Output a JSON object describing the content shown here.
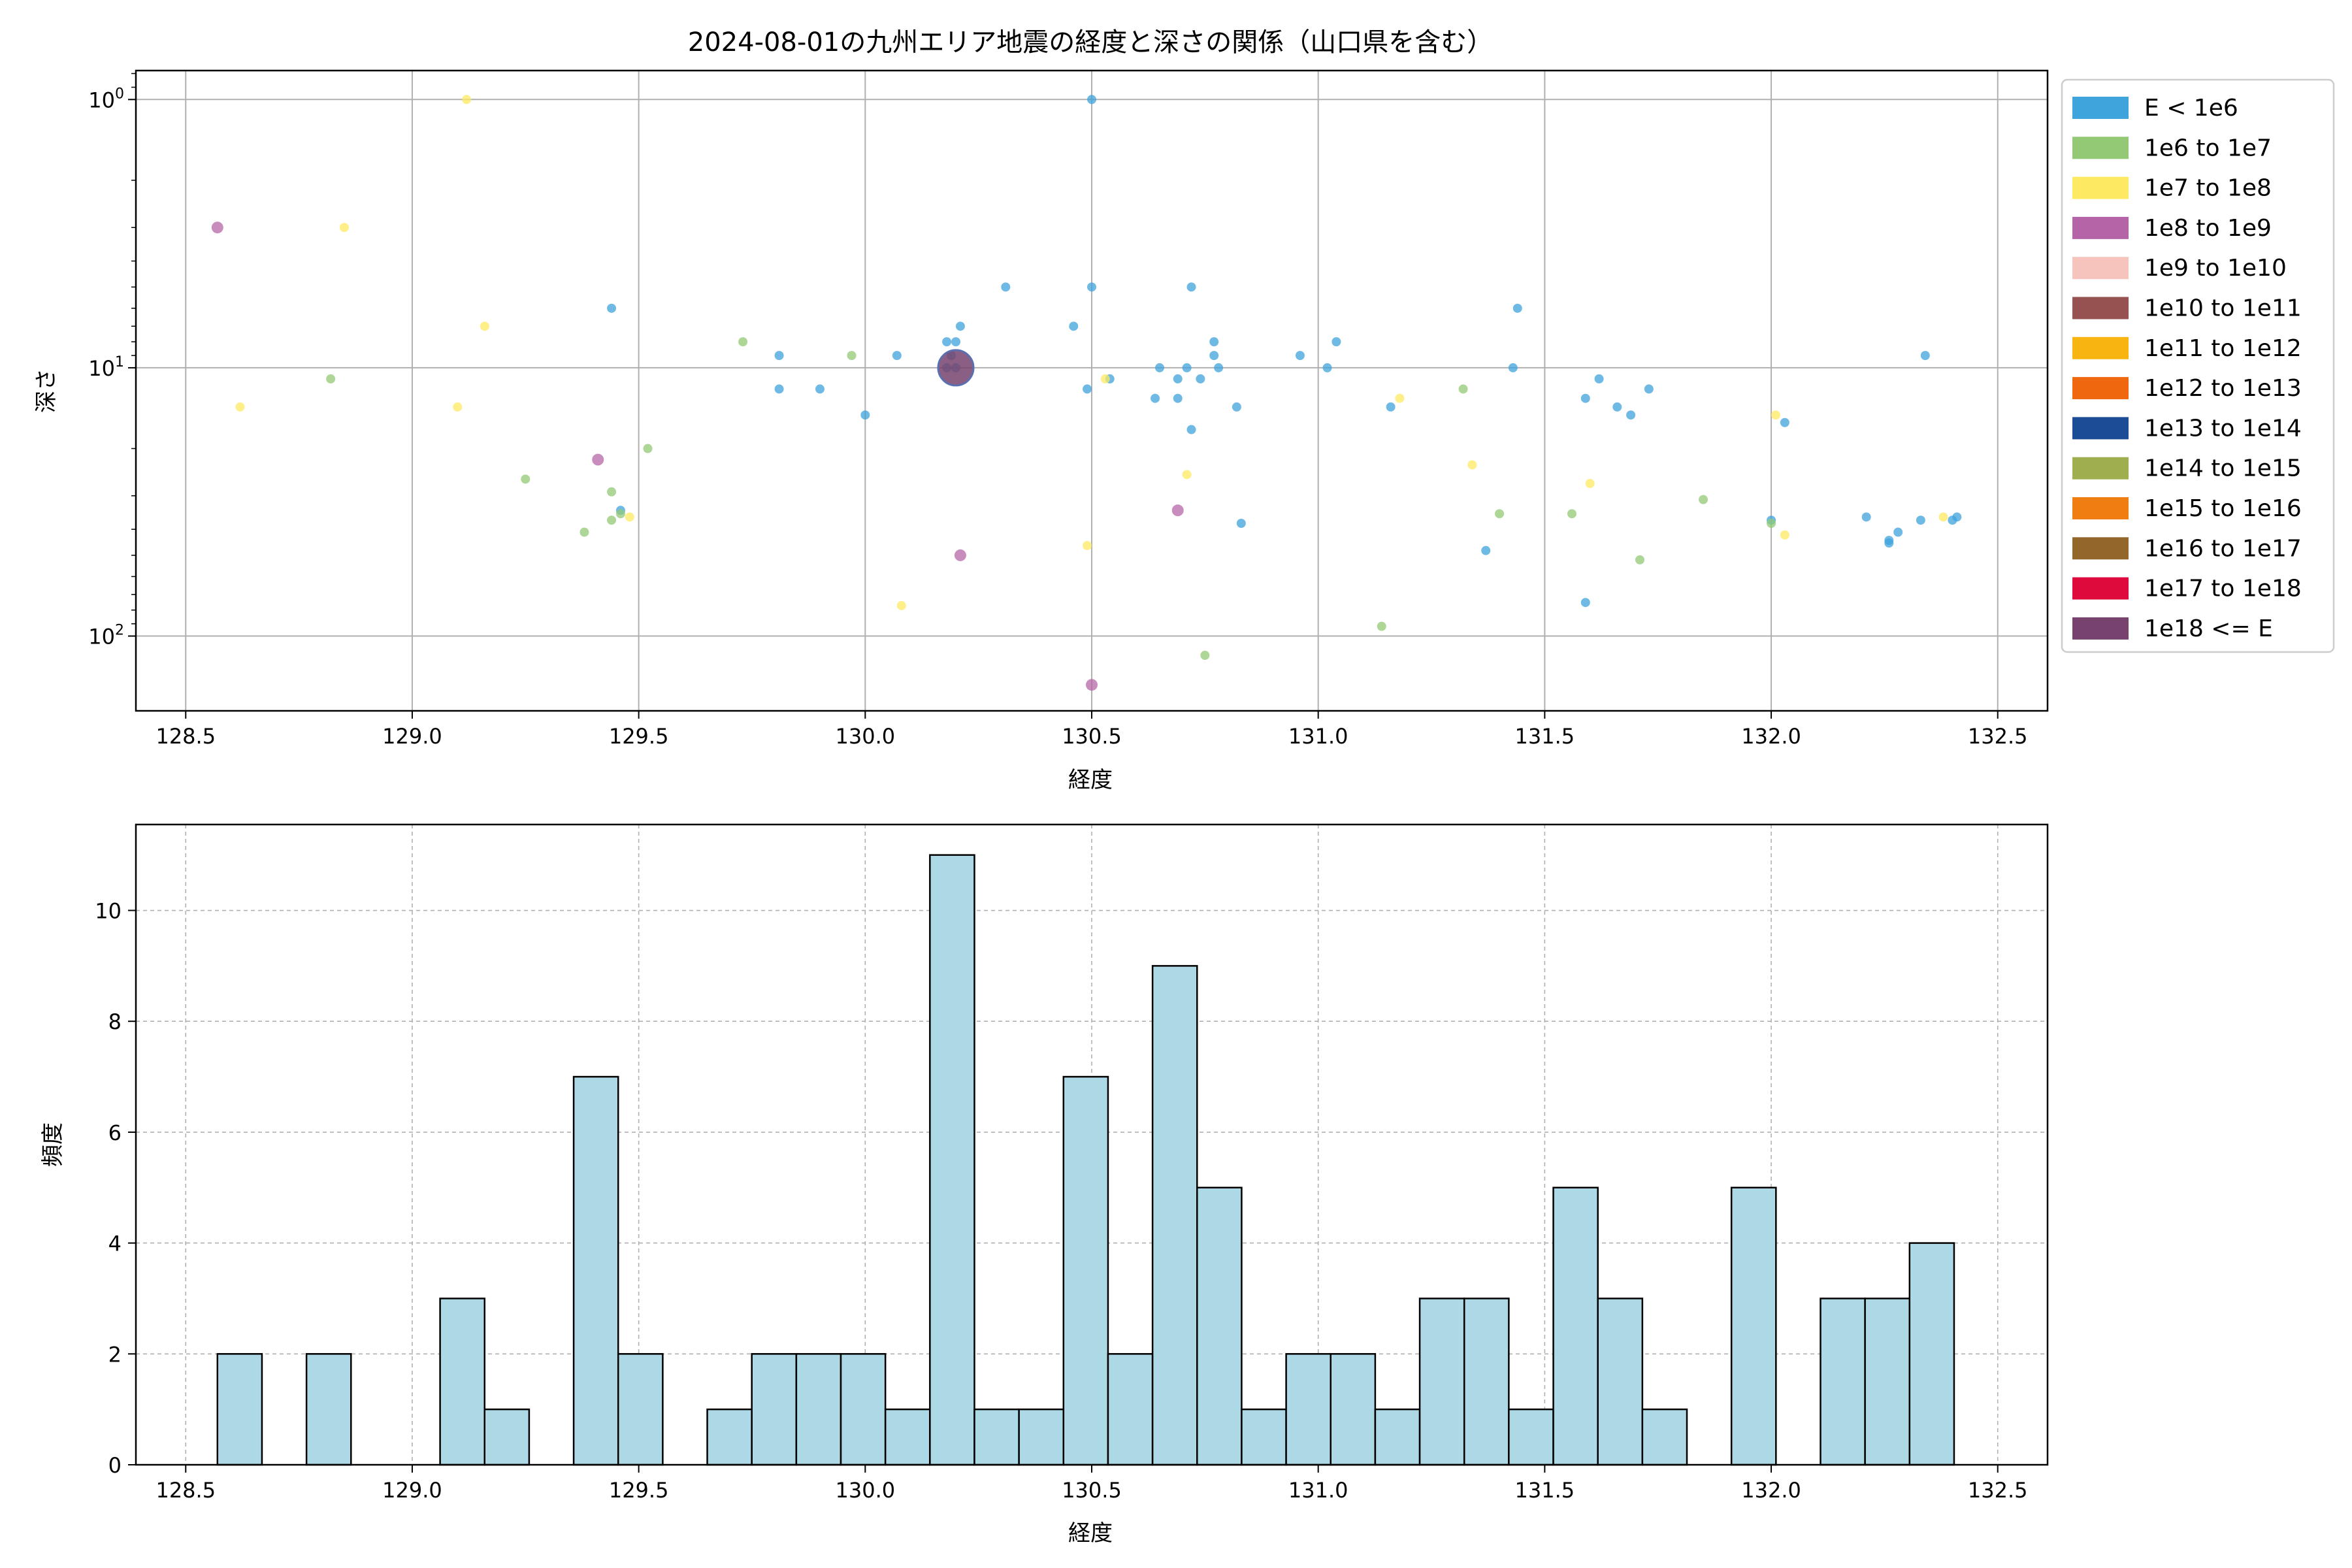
{
  "chart_data": [
    {
      "type": "scatter",
      "title": "2024-08-01の九州エリア地震の経度と深さの関係（山口県を含む）",
      "xlabel": "経度",
      "ylabel": "深さ",
      "xlim": [
        128.39,
        132.61
      ],
      "ylim": [
        190,
        0.78
      ],
      "y_scale": "log-inverted",
      "x_ticks": [
        "128.5",
        "129.0",
        "129.5",
        "130.0",
        "130.5",
        "131.0",
        "131.5",
        "132.0",
        "132.5"
      ],
      "x_tick_values": [
        128.5,
        129.0,
        129.5,
        130.0,
        130.5,
        131.0,
        131.5,
        132.0,
        132.5
      ],
      "y_ticks": [
        "10^0",
        "10^1",
        "10^2"
      ],
      "y_tick_values": [
        1,
        10,
        100
      ],
      "grid": true,
      "legend_position": "outside-right",
      "legend": [
        {
          "label": "E < 1e6",
          "color": "#3fa3dc"
        },
        {
          "label": "1e6 to 1e7",
          "color": "#93c974"
        },
        {
          "label": "1e7 to 1e8",
          "color": "#feea62"
        },
        {
          "label": "1e8 to 1e9",
          "color": "#b565a7"
        },
        {
          "label": "1e9 to 1e10",
          "color": "#f6c3bd"
        },
        {
          "label": "1e10 to 1e11",
          "color": "#955251"
        },
        {
          "label": "1e11 to 1e12",
          "color": "#f8b512"
        },
        {
          "label": "1e12 to 1e13",
          "color": "#ef670e"
        },
        {
          "label": "1e13 to 1e14",
          "color": "#1b4c95"
        },
        {
          "label": "1e14 to 1e15",
          "color": "#9faf4f"
        },
        {
          "label": "1e15 to 1e16",
          "color": "#ef7d12"
        },
        {
          "label": "1e16 to 1e17",
          "color": "#93672b"
        },
        {
          "label": "1e17 to 1e18",
          "color": "#dd0a3b"
        },
        {
          "label": "1e18 <= E",
          "color": "#77426d"
        }
      ],
      "series": [
        {
          "class": 0,
          "points": [
            [
              130.5,
              1
            ],
            [
              129.44,
              6
            ],
            [
              130.31,
              5
            ],
            [
              130.5,
              5
            ],
            [
              130.72,
              5
            ],
            [
              131.44,
              6
            ],
            [
              130.46,
              7
            ],
            [
              130.21,
              7
            ],
            [
              130.18,
              8
            ],
            [
              130.2,
              8
            ],
            [
              130.77,
              8
            ],
            [
              131.04,
              8
            ],
            [
              129.81,
              9
            ],
            [
              130.07,
              9
            ],
            [
              130.19,
              9
            ],
            [
              130.77,
              9
            ],
            [
              130.96,
              9
            ],
            [
              132.34,
              9
            ],
            [
              130.65,
              10
            ],
            [
              130.71,
              10
            ],
            [
              130.78,
              10
            ],
            [
              131.02,
              10
            ],
            [
              131.43,
              10
            ],
            [
              130.18,
              10
            ],
            [
              130.2,
              10
            ],
            [
              130.54,
              11
            ],
            [
              130.69,
              11
            ],
            [
              130.74,
              11
            ],
            [
              131.62,
              11
            ],
            [
              129.81,
              12
            ],
            [
              129.9,
              12
            ],
            [
              130.49,
              12
            ],
            [
              131.73,
              12
            ],
            [
              130.64,
              13
            ],
            [
              130.69,
              13
            ],
            [
              131.59,
              13
            ],
            [
              130.82,
              14
            ],
            [
              131.16,
              14
            ],
            [
              131.66,
              14
            ],
            [
              130.0,
              15
            ],
            [
              131.69,
              15
            ],
            [
              132.03,
              16
            ],
            [
              130.72,
              17
            ],
            [
              129.46,
              34
            ],
            [
              132.21,
              36
            ],
            [
              132.0,
              37
            ],
            [
              132.33,
              37
            ],
            [
              132.4,
              37
            ],
            [
              132.41,
              36
            ],
            [
              130.83,
              38
            ],
            [
              132.28,
              41
            ],
            [
              132.26,
              44
            ],
            [
              132.26,
              45
            ],
            [
              131.37,
              48
            ],
            [
              131.59,
              75
            ]
          ]
        },
        {
          "class": 1,
          "points": [
            [
              129.73,
              8
            ],
            [
              129.97,
              9
            ],
            [
              128.82,
              11
            ],
            [
              131.32,
              12
            ],
            [
              129.52,
              20
            ],
            [
              129.25,
              26
            ],
            [
              129.44,
              29
            ],
            [
              131.85,
              31
            ],
            [
              129.46,
              35
            ],
            [
              131.4,
              35
            ],
            [
              131.56,
              35
            ],
            [
              129.44,
              37
            ],
            [
              132.0,
              38
            ],
            [
              129.38,
              41
            ],
            [
              131.71,
              52
            ],
            [
              131.14,
              92
            ],
            [
              130.75,
              118
            ]
          ]
        },
        {
          "class": 2,
          "points": [
            [
              129.12,
              1
            ],
            [
              128.85,
              3
            ],
            [
              129.16,
              7
            ],
            [
              130.53,
              11
            ],
            [
              131.18,
              13
            ],
            [
              128.62,
              14
            ],
            [
              129.1,
              14
            ],
            [
              132.01,
              15
            ],
            [
              131.34,
              23
            ],
            [
              130.71,
              25
            ],
            [
              131.6,
              27
            ],
            [
              129.48,
              36
            ],
            [
              132.38,
              36
            ],
            [
              132.03,
              42
            ],
            [
              130.49,
              46
            ],
            [
              130.08,
              77
            ]
          ]
        },
        {
          "class": 3,
          "points": [
            [
              128.57,
              3
            ],
            [
              129.41,
              22
            ],
            [
              130.69,
              34
            ],
            [
              130.21,
              50
            ],
            [
              130.5,
              152
            ]
          ]
        },
        {
          "class": 13,
          "points": [
            [
              130.2,
              10
            ]
          ],
          "large": true
        }
      ]
    },
    {
      "type": "bar",
      "title": "",
      "xlabel": "経度",
      "ylabel": "頻度",
      "xlim": [
        128.39,
        132.61
      ],
      "ylim": [
        0,
        11.55
      ],
      "x_ticks": [
        "128.5",
        "129.0",
        "129.5",
        "130.0",
        "130.5",
        "131.0",
        "131.5",
        "132.0",
        "132.5"
      ],
      "x_tick_values": [
        128.5,
        129.0,
        129.5,
        130.0,
        130.5,
        131.0,
        131.5,
        132.0,
        132.5
      ],
      "y_ticks": [
        "0",
        "2",
        "4",
        "6",
        "8",
        "10"
      ],
      "y_tick_values": [
        0,
        2,
        4,
        6,
        8,
        10
      ],
      "grid": true,
      "bar_color": "#add8e6",
      "bins_start": 128.57,
      "bin_width": 0.0983,
      "values": [
        2,
        0,
        2,
        0,
        0,
        3,
        1,
        0,
        7,
        2,
        0,
        1,
        2,
        2,
        2,
        1,
        11,
        1,
        1,
        7,
        2,
        9,
        5,
        1,
        2,
        2,
        1,
        3,
        3,
        1,
        5,
        3,
        1,
        0,
        5,
        0,
        3,
        3,
        4
      ]
    }
  ]
}
